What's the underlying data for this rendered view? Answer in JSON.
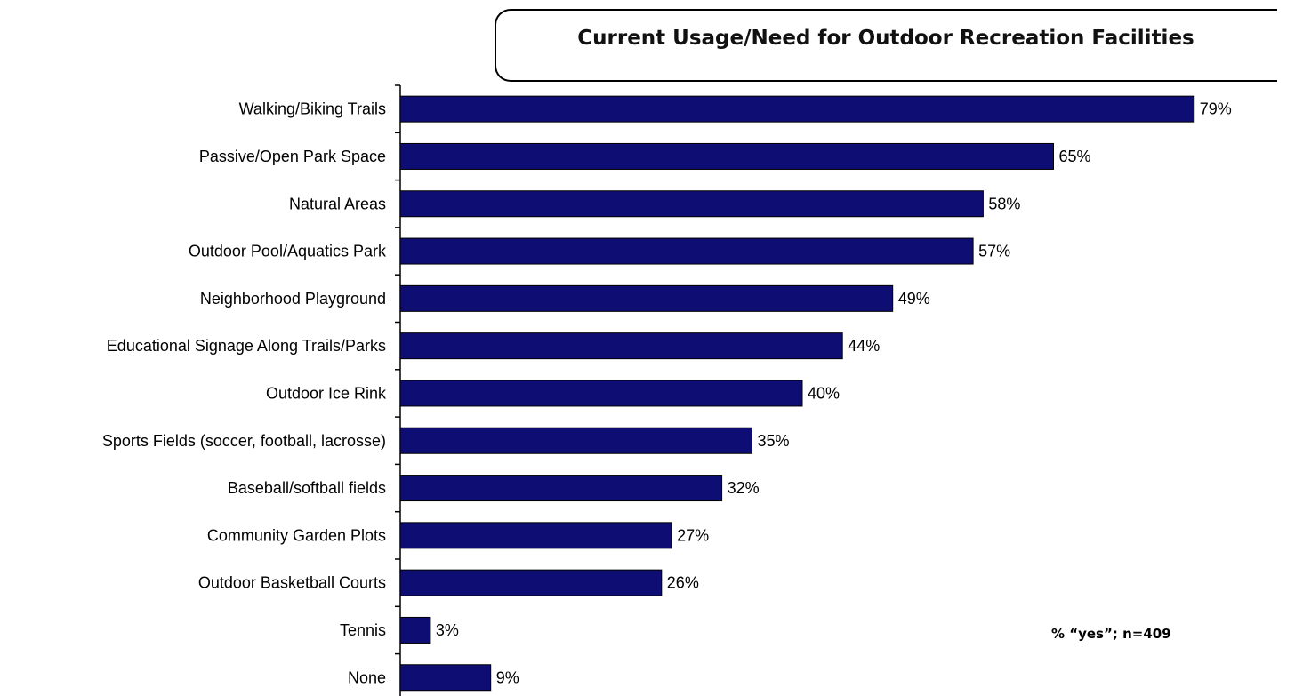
{
  "chart_data": {
    "type": "bar",
    "orientation": "horizontal",
    "title": "Current Usage/Need for Outdoor Recreation Facilities",
    "note": "% “yes”; n=409",
    "categories": [
      "Walking/Biking Trails",
      "Passive/Open Park Space",
      "Natural Areas",
      "Outdoor Pool/Aquatics Park",
      "Neighborhood Playground",
      "Educational Signage Along Trails/Parks",
      "Outdoor Ice Rink",
      "Sports Fields (soccer, football, lacrosse)",
      "Baseball/softball fields",
      "Community Garden Plots",
      "Outdoor Basketball Courts",
      "Tennis",
      "None"
    ],
    "values": [
      79,
      65,
      58,
      57,
      49,
      44,
      40,
      35,
      32,
      27,
      26,
      3,
      9
    ],
    "value_labels": [
      "79%",
      "65%",
      "58%",
      "57%",
      "49%",
      "44%",
      "40%",
      "35%",
      "32%",
      "27%",
      "26%",
      "3%",
      "9%"
    ],
    "xlim": [
      0,
      100
    ],
    "bar_color": "#0d0d73",
    "grid": false,
    "legend": "none"
  }
}
